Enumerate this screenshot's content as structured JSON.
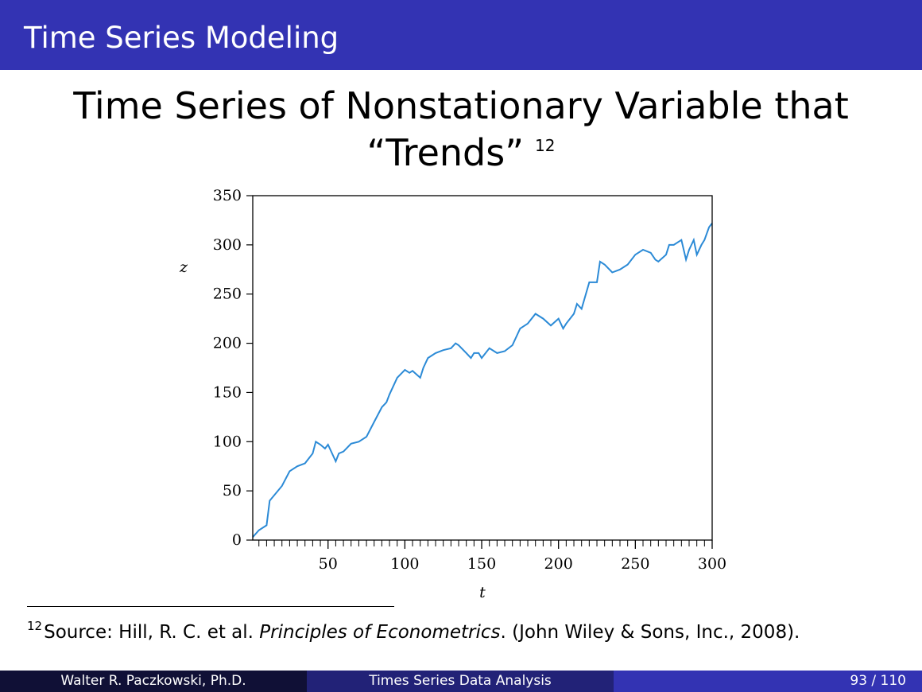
{
  "header": {
    "title": "Time Series Modeling"
  },
  "slide": {
    "title_line1": "Time Series of Nonstationary Variable that",
    "title_line2": "“Trends”",
    "title_footnote_mark": "12"
  },
  "footnote": {
    "mark": "12",
    "text_before": "Source:  Hill, R. C. et al. ",
    "book_title": "Principles of Econometrics",
    "text_after": ". (John Wiley & Sons, Inc., 2008)."
  },
  "footer": {
    "author": "Walter R. Paczkowski, Ph.D.",
    "course": "Times Series Data Analysis",
    "page": "93 / 110"
  },
  "colors": {
    "header": "#3333b3",
    "line": "#2b8ad6"
  },
  "chart_data": {
    "type": "line",
    "title": "",
    "xlabel": "t",
    "ylabel": "z",
    "xlim": [
      1,
      300
    ],
    "ylim": [
      0,
      350
    ],
    "x_ticks": [
      50,
      100,
      150,
      200,
      250,
      300
    ],
    "y_ticks": [
      0,
      50,
      100,
      150,
      200,
      250,
      300,
      350
    ],
    "grid": false,
    "series": [
      {
        "x": [
          1,
          5,
          10,
          12,
          20,
          25,
          30,
          35,
          40,
          42,
          45,
          48,
          50,
          55,
          57,
          60,
          65,
          70,
          75,
          80,
          85,
          88,
          90,
          95,
          100,
          103,
          105,
          110,
          112,
          115,
          120,
          125,
          130,
          133,
          135,
          140,
          143,
          145,
          148,
          150,
          155,
          160,
          165,
          170,
          175,
          180,
          185,
          190,
          195,
          200,
          203,
          205,
          210,
          212,
          215,
          220,
          225,
          227,
          230,
          235,
          240,
          245,
          250,
          255,
          260,
          263,
          265,
          270,
          272,
          275,
          280,
          283,
          285,
          288,
          290,
          293,
          295,
          298,
          300
        ],
        "y": [
          3,
          10,
          15,
          40,
          55,
          70,
          75,
          78,
          88,
          100,
          97,
          93,
          97,
          80,
          88,
          90,
          98,
          100,
          105,
          120,
          135,
          140,
          148,
          165,
          173,
          170,
          172,
          165,
          175,
          185,
          190,
          193,
          195,
          200,
          198,
          190,
          185,
          190,
          190,
          185,
          195,
          190,
          192,
          198,
          215,
          220,
          230,
          225,
          218,
          225,
          215,
          220,
          230,
          240,
          235,
          262,
          262,
          283,
          280,
          272,
          275,
          280,
          290,
          295,
          292,
          285,
          283,
          290,
          300,
          300,
          305,
          285,
          295,
          305,
          290,
          300,
          305,
          318,
          322
        ]
      }
    ]
  }
}
